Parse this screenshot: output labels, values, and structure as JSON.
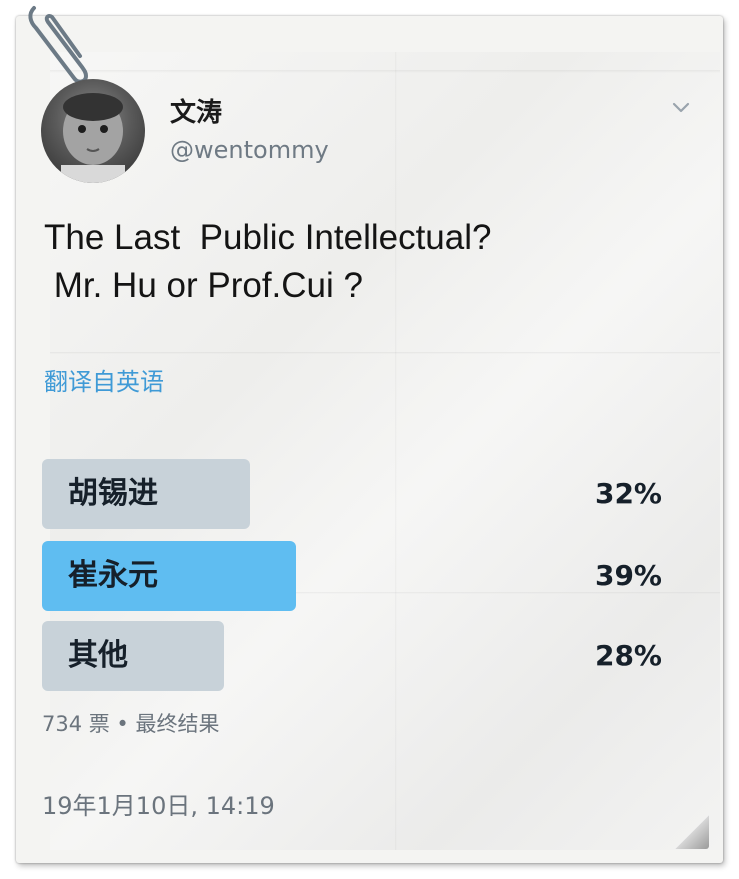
{
  "author": {
    "display_name": "文涛",
    "handle": "@wentommy"
  },
  "tweet": {
    "text_lines": [
      "The Last  Public Intellectual?",
      " Mr. Hu or Prof.Cui ?"
    ],
    "translate_label": "翻译自英语"
  },
  "poll": {
    "options": [
      {
        "label": "胡锡进",
        "percent_text": "32%",
        "percent": 32,
        "winner": false
      },
      {
        "label": "崔永元",
        "percent_text": "39%",
        "percent": 39,
        "winner": true
      },
      {
        "label": "其他",
        "percent_text": "28%",
        "percent": 28,
        "winner": false
      }
    ],
    "summary": "734 票 • 最终结果"
  },
  "timestamp": "19年1月10日, 14:19",
  "icons": {
    "menu": "chevron-down-icon",
    "clip": "paperclip-icon"
  },
  "colors": {
    "winner_bar": "#5fbdf1",
    "other_bar": "#c8d2d9",
    "link": "#3f9ad6",
    "secondary_text": "#6b747d"
  }
}
